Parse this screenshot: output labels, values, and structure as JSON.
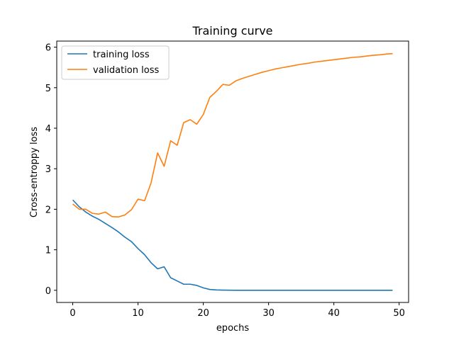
{
  "chart_data": {
    "type": "line",
    "title": "Training curve",
    "xlabel": "epochs",
    "ylabel": "Cross-entroppy loss",
    "xlim": [
      -2.45,
      51.45
    ],
    "ylim": [
      -0.3,
      6.15
    ],
    "xticks": [
      0,
      10,
      20,
      30,
      40,
      50
    ],
    "yticks": [
      0,
      1,
      2,
      3,
      4,
      5,
      6
    ],
    "grid": false,
    "legend": {
      "position": "top-left"
    },
    "series": [
      {
        "name": "training loss",
        "color": "#1f77b4",
        "x": [
          0,
          1,
          2,
          3,
          4,
          5,
          6,
          7,
          8,
          9,
          10,
          11,
          12,
          13,
          14,
          15,
          16,
          17,
          18,
          19,
          20,
          21,
          22,
          23,
          24,
          25,
          26,
          27,
          28,
          29,
          30,
          31,
          32,
          33,
          34,
          35,
          36,
          37,
          38,
          39,
          40,
          41,
          42,
          43,
          44,
          45,
          46,
          47,
          48,
          49
        ],
        "y": [
          2.23,
          2.06,
          1.93,
          1.83,
          1.75,
          1.65,
          1.55,
          1.44,
          1.31,
          1.2,
          1.03,
          0.88,
          0.68,
          0.53,
          0.58,
          0.31,
          0.23,
          0.15,
          0.15,
          0.12,
          0.06,
          0.02,
          0.01,
          0.005,
          0.002,
          0.001,
          0.001,
          0.001,
          0.001,
          0.001,
          0.001,
          0.001,
          0.001,
          0.001,
          0.001,
          0.001,
          0.001,
          0.001,
          0.001,
          0.001,
          0.001,
          0.001,
          0.001,
          0.001,
          0.001,
          0.001,
          0.001,
          0.001,
          0.001,
          0.001
        ]
      },
      {
        "name": "validation loss",
        "color": "#ff7f0e",
        "x": [
          0,
          1,
          2,
          3,
          4,
          5,
          6,
          7,
          8,
          9,
          10,
          11,
          12,
          13,
          14,
          15,
          16,
          17,
          18,
          19,
          20,
          21,
          22,
          23,
          24,
          25,
          26,
          27,
          28,
          29,
          30,
          31,
          32,
          33,
          34,
          35,
          36,
          37,
          38,
          39,
          40,
          41,
          42,
          43,
          44,
          45,
          46,
          47,
          48,
          49
        ],
        "y": [
          2.13,
          2.0,
          2.0,
          1.9,
          1.88,
          1.93,
          1.82,
          1.81,
          1.86,
          1.99,
          2.25,
          2.21,
          2.65,
          3.39,
          3.06,
          3.69,
          3.58,
          4.14,
          4.21,
          4.1,
          4.34,
          4.76,
          4.91,
          5.08,
          5.06,
          5.17,
          5.23,
          5.28,
          5.33,
          5.38,
          5.42,
          5.46,
          5.49,
          5.52,
          5.55,
          5.58,
          5.6,
          5.63,
          5.65,
          5.67,
          5.69,
          5.71,
          5.73,
          5.75,
          5.76,
          5.78,
          5.8,
          5.81,
          5.83,
          5.84
        ]
      }
    ]
  }
}
